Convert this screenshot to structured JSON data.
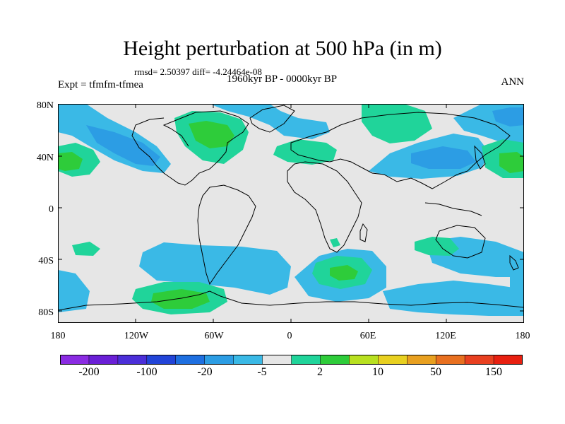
{
  "title": "Height perturbation at 500 hPa (in m)",
  "stats_line": "rmsd= 2.50397 diff= -4.24464e-08",
  "period": "1960kyr BP - 0000kyr BP",
  "experiment": "Expt = tfmfm-tfmea",
  "season": "ANN",
  "lat_labels": [
    "80N",
    "40N",
    "0",
    "40S",
    "80S"
  ],
  "lon_labels": [
    "180",
    "120W",
    "60W",
    "0",
    "60E",
    "120E",
    "180"
  ],
  "colorbar": {
    "colors": [
      "#8a2be2",
      "#6a1fd6",
      "#4b2ed8",
      "#2244d8",
      "#1e6fe0",
      "#2c9de4",
      "#3ab9e6",
      "#e6e6e6",
      "#20d49a",
      "#2ecc3a",
      "#b8e020",
      "#e8d020",
      "#e8a020",
      "#e87020",
      "#e84020",
      "#e82010"
    ],
    "labels": [
      "-200",
      "-100",
      "-20",
      "-5",
      "2",
      "10",
      "50",
      "150"
    ]
  },
  "map_colors": {
    "background": "#e6e6e6",
    "neg_light": "#3ab9e6",
    "neg_mid": "#2c9de4",
    "pos_light": "#20d49a",
    "pos_mid": "#2ecc3a",
    "coast": "#000000"
  }
}
